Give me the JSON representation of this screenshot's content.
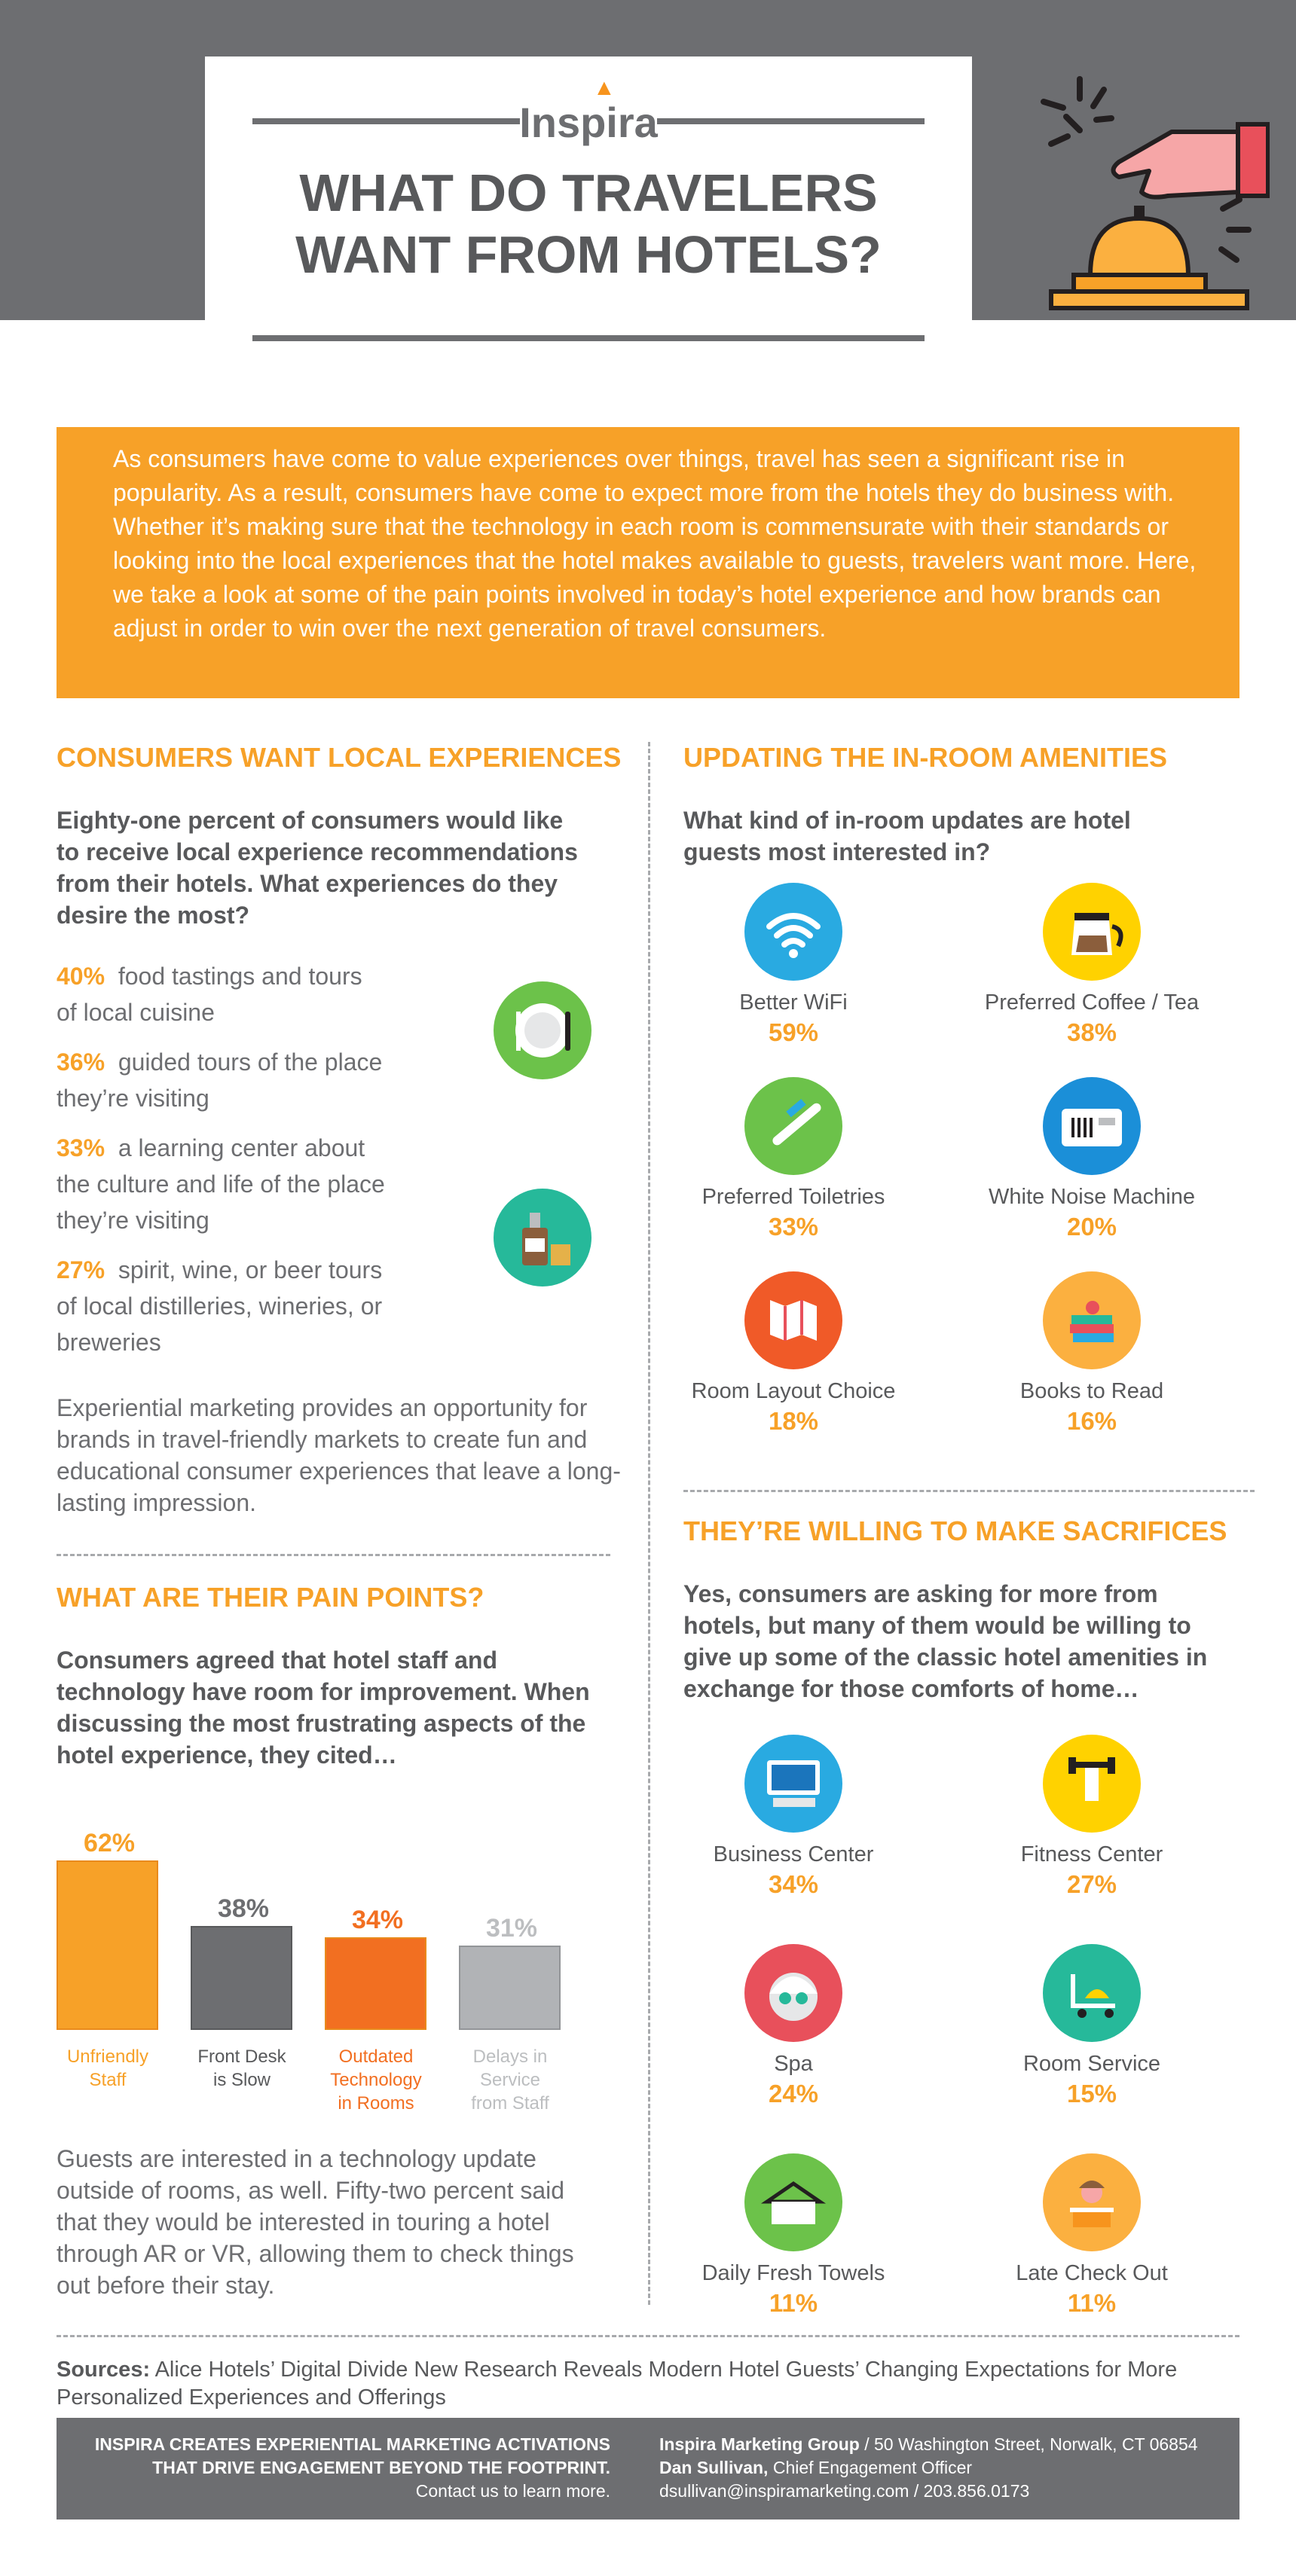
{
  "header": {
    "logo": "Inspira",
    "title_line1": "WHAT DO TRAVELERS",
    "title_line2": "WANT FROM HOTELS?"
  },
  "intro": "As consumers have come to value experiences over things, travel has seen a significant rise in popularity. As a result, consumers have come to expect more from the hotels they do business with. Whether it’s making sure that the technology in each room is commensurate with their standards or looking into the local experiences that the hotel makes available to guests, travelers want more. Here, we take a look at some of the pain points involved in today’s hotel experience and how brands can adjust in order to win over the next generation of travel consumers.",
  "local": {
    "heading": "CONSUMERS WANT LOCAL EXPERIENCES",
    "lead": "Eighty-one percent of consumers would like to receive local experience recommendations from their hotels. What experiences do they desire the most?",
    "stats": [
      {
        "pct": "40%",
        "line1": "food tastings and tours",
        "line2": "of local cuisine",
        "line3": ""
      },
      {
        "pct": "36%",
        "line1": "guided tours of the place",
        "line2": "they’re visiting",
        "line3": ""
      },
      {
        "pct": "33%",
        "line1": "a learning center about",
        "line2": "the culture and life of the place",
        "line3": "they’re visiting"
      },
      {
        "pct": "27%",
        "line1": "spirit, wine, or beer tours",
        "line2": "of local distilleries, wineries, or",
        "line3": "breweries"
      }
    ],
    "closing": "Experiential marketing provides an opportunity for brands in travel-friendly markets to create fun and educational consumer experiences that leave a long-lasting impression."
  },
  "pain": {
    "heading": "WHAT ARE THEIR PAIN POINTS?",
    "lead": "Consumers agreed that hotel staff and technology have room for improvement. When discussing the most frustrating aspects of the hotel experience, they cited…",
    "closing": "Guests are interested in a technology update outside of rooms, as well. Fifty-two percent said that they would be interested in touring a hotel through AR or VR, allowing them to check things out before their stay."
  },
  "chart_data": {
    "type": "bar",
    "categories": [
      "Unfriendly Staff",
      "Front Desk is Slow",
      "Outdated Technology in Rooms",
      "Delays in Service from Staff"
    ],
    "values": [
      62,
      38,
      34,
      31
    ],
    "value_labels": [
      "62%",
      "38%",
      "34%",
      "31%"
    ],
    "label_lines": [
      [
        "Unfriendly",
        "Staff"
      ],
      [
        "Front Desk",
        "is Slow"
      ],
      [
        "Outdated",
        "Technology",
        "in Rooms"
      ],
      [
        "Delays in",
        "Service",
        "from Staff"
      ]
    ],
    "colors": [
      "#f7a128",
      "#6d6e71",
      "#f26f21",
      "#b1b3b6"
    ],
    "title": "",
    "xlabel": "",
    "ylabel": "",
    "ylim": [
      0,
      62
    ],
    "grid": false
  },
  "amenities": {
    "heading": "UPDATING THE IN-ROOM AMENITIES",
    "lead": "What kind of in-room updates are hotel guests most interested in?",
    "items": [
      {
        "label": "Better WiFi",
        "value": "59%",
        "color": "#29aae1",
        "icon": "wifi-icon"
      },
      {
        "label": "Preferred Coffee / Tea",
        "value": "38%",
        "color": "#ffd200",
        "icon": "coffee-pot-icon"
      },
      {
        "label": "Preferred Toiletries",
        "value": "33%",
        "color": "#6cc24a",
        "icon": "toothbrush-icon"
      },
      {
        "label": "White Noise Machine",
        "value": "20%",
        "color": "#1b8fd8",
        "icon": "white-noise-machine-icon"
      },
      {
        "label": "Room Layout Choice",
        "value": "18%",
        "color": "#f05a28",
        "icon": "map-icon"
      },
      {
        "label": "Books to Read",
        "value": "16%",
        "color": "#fbb040",
        "icon": "books-icon"
      }
    ]
  },
  "sacrifices": {
    "heading": "THEY’RE WILLING TO MAKE SACRIFICES",
    "lead": "Yes, consumers are asking for more from hotels, but many of them would be willing to give up some of the classic hotel amenities in exchange for those comforts of home…",
    "items": [
      {
        "label": "Business Center",
        "value": "34%",
        "color": "#29aae1",
        "icon": "computer-icon"
      },
      {
        "label": "Fitness Center",
        "value": "27%",
        "color": "#ffd200",
        "icon": "dumbbell-icon"
      },
      {
        "label": "Spa",
        "value": "24%",
        "color": "#e8505b",
        "icon": "spa-face-icon"
      },
      {
        "label": "Room Service",
        "value": "15%",
        "color": "#26b99a",
        "icon": "room-service-cart-icon"
      },
      {
        "label": "Daily Fresh Towels",
        "value": "11%",
        "color": "#6cc24a",
        "icon": "towel-hanger-icon"
      },
      {
        "label": "Late Check Out",
        "value": "11%",
        "color": "#fbb040",
        "icon": "receptionist-icon"
      }
    ]
  },
  "sources": {
    "label": "Sources:",
    "text": "Alice Hotels’ Digital Divide New Research Reveals Modern Hotel Guests’ Changing Expectations for More Personalized Experiences and Offerings"
  },
  "footer": {
    "left_line1": "INSPIRA CREATES EXPERIENTIAL MARKETING ACTIVATIONS",
    "left_line2": "THAT DRIVE ENGAGEMENT BEYOND THE FOOTPRINT.",
    "left_line3": "Contact us to learn more.",
    "company": "Inspira Marketing Group",
    "address": " / 50 Washington Street, Norwalk, CT 06854",
    "contact_name": "Dan Sullivan,",
    "contact_title": " Chief Engagement Officer",
    "contact_details": "dsullivan@inspiramarketing.com / 203.856.0173"
  },
  "colors": {
    "accent": "#f7a128",
    "dark_gray": "#6d6e71",
    "text_gray": "#58595b"
  }
}
